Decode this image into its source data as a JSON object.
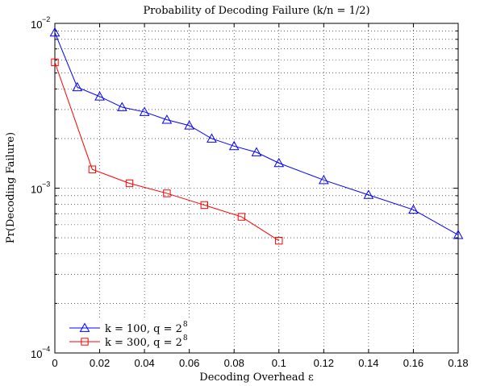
{
  "chart_data": {
    "type": "line",
    "title": "Probability of Decoding Failure (k/n = 1/2)",
    "xlabel": "Decoding Overhead ε",
    "ylabel": "Pr(Decoding Failure)",
    "xlim": [
      0,
      0.18
    ],
    "ylim": [
      0.0001,
      0.01
    ],
    "yscale": "log",
    "grid": true,
    "legend_position": "bottom-left",
    "x_ticks": [
      0,
      0.02,
      0.04,
      0.06,
      0.08,
      0.1,
      0.12,
      0.14,
      0.16,
      0.18
    ],
    "x_tick_labels": [
      "0",
      "0.02",
      "0.04",
      "0.06",
      "0.08",
      "0.1",
      "0.12",
      "0.14",
      "0.16",
      "0.18"
    ],
    "y_ticks": [
      {
        "value": 0.01,
        "base": "10",
        "exponent": "−2"
      },
      {
        "value": 0.001,
        "base": "10",
        "exponent": "−3"
      },
      {
        "value": 0.0001,
        "base": "10",
        "exponent": "−4"
      }
    ],
    "series": [
      {
        "name": "k = 100, q = 2^8",
        "legend_main": "k = 100, q = 2",
        "legend_sup": "8",
        "color": "#0000ff",
        "marker": "triangle",
        "x": [
          0,
          0.01,
          0.02,
          0.03,
          0.04,
          0.05,
          0.06,
          0.07,
          0.08,
          0.09,
          0.1,
          0.12,
          0.14,
          0.16,
          0.18
        ],
        "values": [
          0.0088,
          0.0041,
          0.0036,
          0.0031,
          0.0029,
          0.0026,
          0.0024,
          0.002,
          0.0018,
          0.00165,
          0.00142,
          0.00112,
          0.00091,
          0.00074,
          0.00052
        ]
      },
      {
        "name": "k = 300, q = 2^8",
        "legend_main": "k = 300, q = 2",
        "legend_sup": "8",
        "color": "#ff0000",
        "marker": "square",
        "x": [
          0,
          0.0167,
          0.0333,
          0.05,
          0.0667,
          0.0833,
          0.1
        ],
        "values": [
          0.0058,
          0.0013,
          0.00107,
          0.00093,
          0.00079,
          0.00067,
          0.00048
        ]
      }
    ]
  }
}
